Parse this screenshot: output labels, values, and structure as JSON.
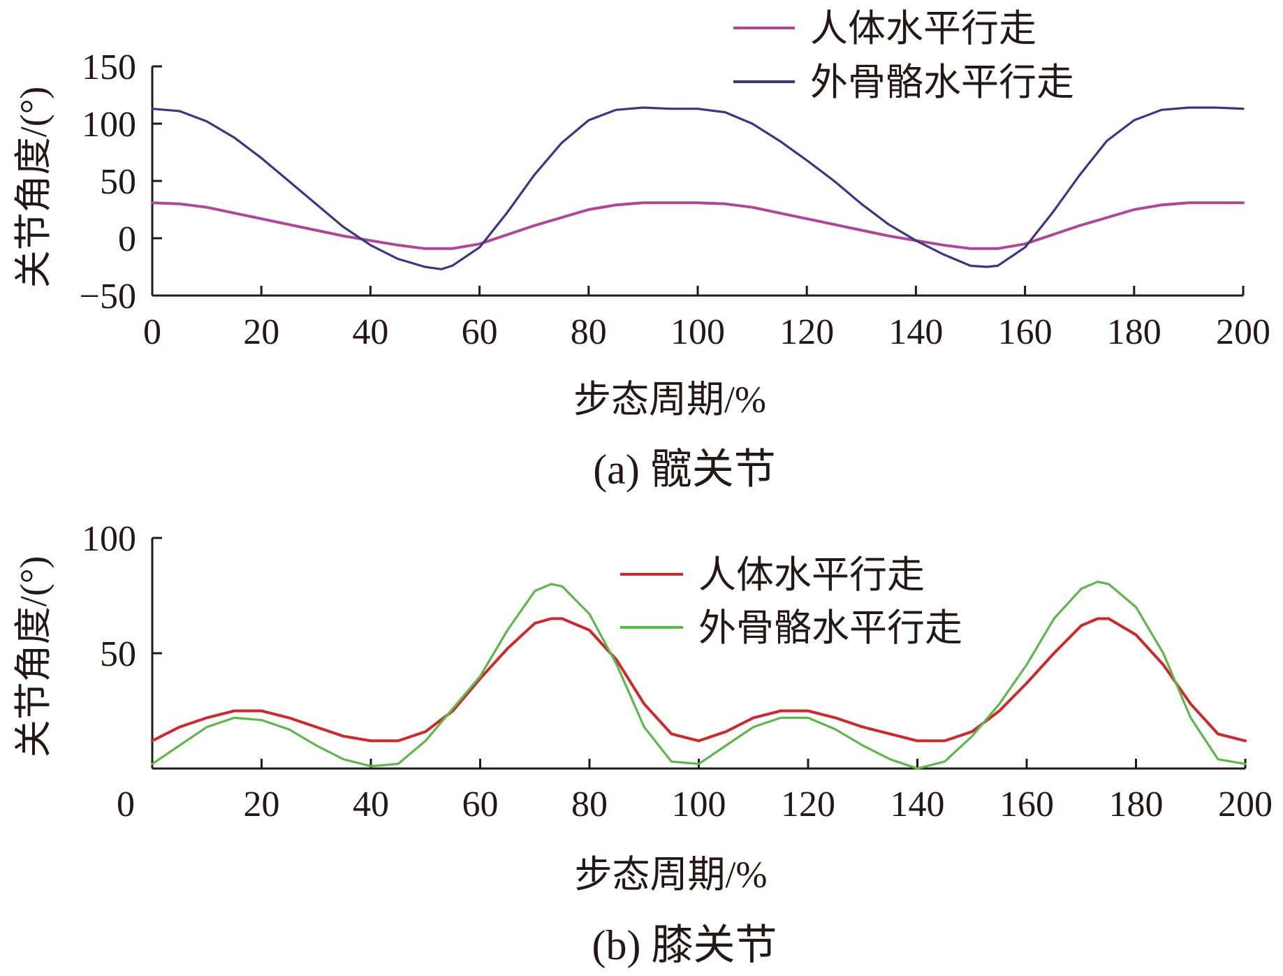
{
  "chart_data": [
    {
      "type": "line",
      "caption": "(a)  髋关节",
      "xlabel": "步态周期/%",
      "ylabel": "关节角度/(°)",
      "xlim": [
        0,
        200
      ],
      "ylim": [
        -50,
        150
      ],
      "xticks": [
        "0",
        "20",
        "40",
        "60",
        "80",
        "100",
        "120",
        "140",
        "160",
        "180",
        "200"
      ],
      "yticks": [
        "−50",
        "0",
        "50",
        "100",
        "150"
      ],
      "legend_position": "top-right",
      "grid": false,
      "series": [
        {
          "name": "人体水平行走",
          "color": "#b2459a",
          "x": [
            0,
            5,
            10,
            15,
            20,
            25,
            30,
            35,
            40,
            45,
            50,
            55,
            60,
            65,
            70,
            75,
            80,
            85,
            90,
            95,
            100,
            105,
            110,
            115,
            120,
            125,
            130,
            135,
            140,
            145,
            150,
            155,
            160,
            165,
            170,
            175,
            180,
            185,
            190,
            195,
            200
          ],
          "y": [
            31,
            30,
            27,
            22,
            17,
            12,
            7,
            2,
            -2,
            -6,
            -9,
            -9,
            -5,
            3,
            11,
            18,
            25,
            29,
            31,
            31,
            31,
            30,
            27,
            22,
            17,
            12,
            7,
            2,
            -2,
            -6,
            -9,
            -9,
            -5,
            3,
            11,
            18,
            25,
            29,
            31,
            31,
            31
          ]
        },
        {
          "name": "外骨骼水平行走",
          "color": "#3b3585",
          "x": [
            0,
            5,
            10,
            15,
            20,
            25,
            30,
            35,
            40,
            45,
            50,
            53,
            55,
            60,
            65,
            70,
            75,
            80,
            85,
            90,
            95,
            100,
            105,
            110,
            115,
            120,
            125,
            130,
            135,
            140,
            145,
            150,
            153,
            155,
            160,
            165,
            170,
            175,
            180,
            185,
            190,
            195,
            200
          ],
          "y": [
            113,
            111,
            102,
            88,
            70,
            50,
            30,
            10,
            -6,
            -18,
            -25,
            -27,
            -24,
            -8,
            22,
            55,
            83,
            103,
            112,
            114,
            113,
            113,
            110,
            100,
            85,
            68,
            50,
            30,
            12,
            -2,
            -14,
            -24,
            -25,
            -24,
            -8,
            22,
            55,
            85,
            103,
            112,
            114,
            114,
            113
          ]
        }
      ]
    },
    {
      "type": "line",
      "caption": "(b)  膝关节",
      "xlabel": "步态周期/%",
      "ylabel": "关节角度/(°)",
      "xlim": [
        0,
        200
      ],
      "ylim": [
        0,
        100
      ],
      "xticks": [
        "0",
        "20",
        "40",
        "60",
        "80",
        "100",
        "120",
        "140",
        "160",
        "180",
        "200"
      ],
      "yticks": [
        "50",
        "100"
      ],
      "legend_position": "top-center",
      "grid": false,
      "series": [
        {
          "name": "人体水平行走",
          "color": "#d1272a",
          "x": [
            0,
            5,
            10,
            15,
            20,
            25,
            30,
            35,
            40,
            45,
            50,
            55,
            60,
            65,
            70,
            73,
            75,
            80,
            85,
            90,
            95,
            100,
            105,
            110,
            115,
            120,
            125,
            130,
            135,
            140,
            145,
            150,
            155,
            160,
            165,
            170,
            173,
            175,
            180,
            185,
            190,
            195,
            200
          ],
          "y": [
            12,
            18,
            22,
            25,
            25,
            22,
            18,
            14,
            12,
            12,
            16,
            25,
            39,
            52,
            63,
            65,
            65,
            60,
            47,
            28,
            15,
            12,
            16,
            22,
            25,
            25,
            22,
            18,
            15,
            12,
            12,
            16,
            25,
            37,
            50,
            62,
            65,
            65,
            58,
            45,
            28,
            15,
            12
          ]
        },
        {
          "name": "外骨骼水平行走",
          "color": "#5db84a",
          "x": [
            0,
            5,
            10,
            15,
            20,
            25,
            30,
            35,
            40,
            45,
            50,
            55,
            60,
            65,
            70,
            73,
            75,
            80,
            85,
            90,
            95,
            100,
            105,
            110,
            115,
            120,
            125,
            130,
            135,
            140,
            145,
            150,
            155,
            160,
            165,
            170,
            173,
            175,
            180,
            185,
            190,
            195,
            200
          ],
          "y": [
            2,
            10,
            18,
            22,
            21,
            17,
            10,
            4,
            1,
            2,
            12,
            26,
            40,
            60,
            77,
            80,
            79,
            67,
            45,
            18,
            3,
            2,
            10,
            18,
            22,
            22,
            17,
            10,
            4,
            0,
            3,
            14,
            28,
            45,
            65,
            78,
            81,
            80,
            70,
            50,
            22,
            4,
            2
          ]
        }
      ]
    }
  ]
}
